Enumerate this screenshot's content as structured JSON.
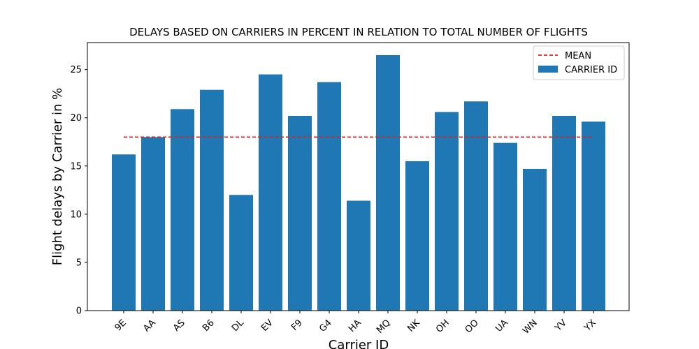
{
  "chart_data": {
    "type": "bar",
    "title": "DELAYS BASED ON CARRIERS IN PERCENT IN RELATION TO TOTAL NUMBER OF FLIGHTS",
    "xlabel": "Carrier ID",
    "ylabel": "Flight delays by Carrier in %",
    "categories": [
      "9E",
      "AA",
      "AS",
      "B6",
      "DL",
      "EV",
      "F9",
      "G4",
      "HA",
      "MQ",
      "NK",
      "OH",
      "OO",
      "UA",
      "WN",
      "YV",
      "YX"
    ],
    "series": [
      {
        "name": "CARRIER ID",
        "values": [
          16.2,
          18.0,
          20.9,
          22.9,
          12.0,
          24.5,
          20.2,
          23.7,
          11.4,
          26.5,
          15.5,
          20.6,
          21.7,
          17.4,
          14.7,
          20.2,
          19.6
        ]
      }
    ],
    "mean": {
      "name": "MEAN",
      "value": 18.0
    },
    "yticks": [
      0,
      5,
      10,
      15,
      20,
      25
    ],
    "ylim": [
      0,
      27.8
    ],
    "grid": false,
    "legend": "top-right",
    "colors": {
      "bar": "#1f77b4",
      "mean": "#d62728"
    }
  }
}
